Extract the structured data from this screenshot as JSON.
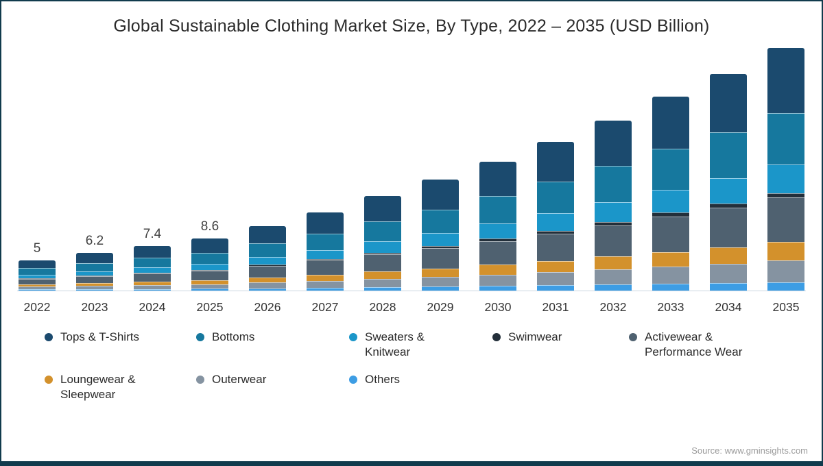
{
  "page": {
    "title": "Global Sustainable Clothing Market Size, By Type, 2022 – 2035 (USD Billion)",
    "source": "Source: www.gminsights.com",
    "border_color": "#113b4d",
    "background": "#ffffff",
    "axis_color": "#c9d6e0"
  },
  "chart_data": {
    "type": "bar",
    "stacked": true,
    "title": "Global Sustainable Clothing Market Size, By Type, 2022 – 2035 (USD Billion)",
    "unit": "USD Billion",
    "xlabel": "",
    "ylabel": "",
    "grid": false,
    "legend_position": "bottom",
    "x": [
      "2022",
      "2023",
      "2024",
      "2025",
      "2026",
      "2027",
      "2028",
      "2029",
      "2030",
      "2031",
      "2032",
      "2033",
      "2034",
      "2035"
    ],
    "totals": [
      5,
      6.2,
      7.4,
      8.6,
      10.7,
      12.9,
      15.6,
      18.3,
      21.3,
      24.6,
      28.1,
      32.0,
      35.8,
      40.1
    ],
    "bar_value_labels": [
      "5",
      "6.2",
      "7.4",
      "8.6",
      "",
      "",
      "",
      "",
      "",
      "",
      "",
      "",
      "",
      ""
    ],
    "stack_order_note": "series listed top-of-stack first; bars stack with first series on top, last series at bottom",
    "series": [
      {
        "name": "Tops & T-Shirts",
        "color": "#1b4a6e",
        "values": [
          1.34,
          1.66,
          1.98,
          2.3,
          2.87,
          3.46,
          4.18,
          4.9,
          5.71,
          6.59,
          7.53,
          8.58,
          9.59,
          10.75
        ]
      },
      {
        "name": "Bottoms",
        "color": "#16789e",
        "values": [
          1.06,
          1.31,
          1.57,
          1.82,
          2.27,
          2.73,
          3.31,
          3.88,
          4.52,
          5.22,
          5.96,
          6.78,
          7.59,
          8.5
        ]
      },
      {
        "name": "Sweaters & Knitwear",
        "color": "#1b96c9",
        "values": [
          0.59,
          0.73,
          0.87,
          1.01,
          1.26,
          1.52,
          1.84,
          2.16,
          2.51,
          2.9,
          3.32,
          3.78,
          4.22,
          4.73
        ]
      },
      {
        "name": "Swimwear",
        "color": "#232f3a",
        "values": [
          0.09,
          0.11,
          0.13,
          0.15,
          0.19,
          0.23,
          0.28,
          0.33,
          0.38,
          0.44,
          0.51,
          0.58,
          0.64,
          0.72
        ]
      },
      {
        "name": "Activewear & Performance Wear",
        "color": "#4f6170",
        "values": [
          0.92,
          1.14,
          1.36,
          1.58,
          1.97,
          2.37,
          2.87,
          3.37,
          3.92,
          4.53,
          5.17,
          5.89,
          6.59,
          7.38
        ]
      },
      {
        "name": "Loungewear & Sleepwear",
        "color": "#d3912c",
        "values": [
          0.38,
          0.47,
          0.56,
          0.65,
          0.81,
          0.98,
          1.19,
          1.39,
          1.62,
          1.87,
          2.14,
          2.43,
          2.72,
          3.05
        ]
      },
      {
        "name": "Outerwear",
        "color": "#8593a1",
        "values": [
          0.45,
          0.55,
          0.66,
          0.77,
          0.95,
          1.15,
          1.39,
          1.63,
          1.9,
          2.19,
          2.5,
          2.85,
          3.19,
          3.57
        ]
      },
      {
        "name": "Others",
        "color": "#3d9de4",
        "values": [
          0.18,
          0.22,
          0.26,
          0.3,
          0.37,
          0.45,
          0.55,
          0.64,
          0.75,
          0.86,
          0.98,
          1.12,
          1.25,
          1.4
        ]
      }
    ]
  },
  "legend": {
    "rows": [
      [
        {
          "series": 0,
          "label": "Tops & T-Shirts"
        },
        {
          "series": 1,
          "label": "Bottoms"
        },
        {
          "series": 2,
          "label": "Sweaters &\nKnitwear"
        },
        {
          "series": 3,
          "label": "Swimwear"
        },
        {
          "series": 4,
          "label": "Activewear &\nPerformance Wear"
        }
      ],
      [
        {
          "series": 5,
          "label": "Loungewear &\nSleepwear"
        },
        {
          "series": 6,
          "label": "Outerwear"
        },
        {
          "series": 7,
          "label": "Others"
        }
      ]
    ]
  }
}
